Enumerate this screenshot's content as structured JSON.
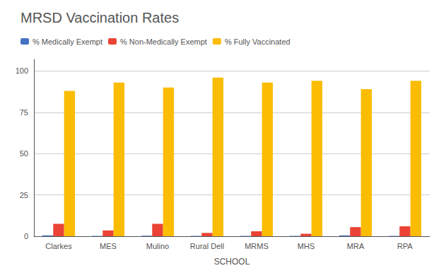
{
  "chart_data": {
    "type": "bar",
    "title": "MRSD Vaccination Rates",
    "xlabel": "SCHOOL",
    "categories": [
      "Clarkes",
      "MES",
      "Mulino",
      "Rural Dell",
      "MRMS",
      "MHS",
      "MRA",
      "RPA"
    ],
    "series": [
      {
        "name": "% Medically Exempt",
        "color": "#4472C4",
        "values": [
          0.5,
          0.2,
          0.3,
          0.2,
          0.2,
          0.2,
          0.5,
          0.2
        ]
      },
      {
        "name": "% Non-Medically Exempt",
        "color": "#EA4335",
        "values": [
          7.5,
          3.5,
          7.5,
          2.0,
          3.0,
          1.5,
          5.5,
          6.0
        ]
      },
      {
        "name": "% Fully Vaccinated",
        "color": "#FBBC04",
        "values": [
          88,
          93,
          90,
          96,
          93,
          94,
          89,
          94
        ]
      }
    ],
    "ylim": [
      0,
      107
    ],
    "yticks": [
      0,
      25,
      50,
      75,
      100
    ],
    "grid": true,
    "legend": "top-left"
  }
}
